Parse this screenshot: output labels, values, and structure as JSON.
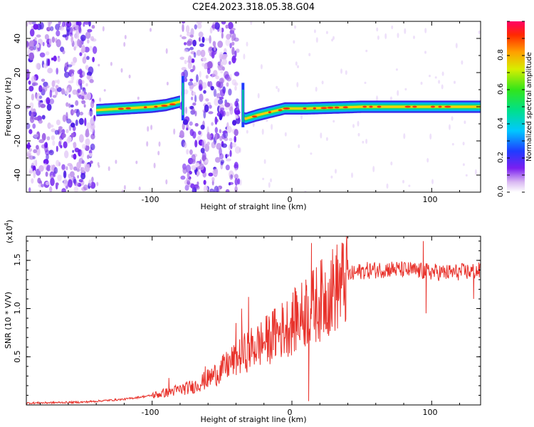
{
  "title": "C2E4.2023.318.05.38.G04",
  "colors": {
    "line": "#e8322b",
    "axis": "#000000"
  },
  "chart_data": [
    {
      "type": "heatmap",
      "title": "C2E4.2023.318.05.38.G04",
      "xlabel": "Height of straight line (km)",
      "ylabel": "Frequency (Hz)",
      "xlim": [
        -190,
        135
      ],
      "ylim": [
        -50,
        50
      ],
      "x_ticks": [
        "-100",
        "0",
        "100"
      ],
      "y_ticks": [
        "-40",
        "-20",
        "0",
        "20",
        "40"
      ],
      "colorbar": {
        "label": "Normalized spectral amplitude",
        "range": [
          0,
          1
        ],
        "ticks": [
          "0.0",
          "0.2",
          "0.4",
          "0.6",
          "0.8"
        ],
        "colormap": "rainbow"
      },
      "noise_regions": [
        [
          -190,
          -141
        ],
        [
          -79,
          -38
        ]
      ],
      "signal_track": [
        {
          "x": -140,
          "y": -2
        },
        {
          "x": -120,
          "y": -1
        },
        {
          "x": -100,
          "y": 0
        },
        {
          "x": -90,
          "y": 1
        },
        {
          "x": -80,
          "y": 3
        },
        {
          "x": -33,
          "y": -7
        },
        {
          "x": -25,
          "y": -5
        },
        {
          "x": -15,
          "y": -3
        },
        {
          "x": -5,
          "y": -1
        },
        {
          "x": 10,
          "y": -1
        },
        {
          "x": 50,
          "y": 0
        },
        {
          "x": 100,
          "y": 0
        },
        {
          "x": 135,
          "y": 0
        }
      ]
    },
    {
      "type": "line",
      "xlabel": "Height of straight line (km)",
      "ylabel": "SNR (10 * V/V)",
      "y_multiplier": "(x10",
      "y_multiplier_exp": "4",
      "xlim": [
        -190,
        135
      ],
      "ylim": [
        0,
        1.75
      ],
      "x_ticks": [
        "-100",
        "0",
        "100"
      ],
      "y_ticks": [
        "0.5",
        "1.0",
        "1.5"
      ],
      "series": [
        {
          "trend": [
            {
              "x": -190,
              "y": 0.02
            },
            {
              "x": -150,
              "y": 0.03
            },
            {
              "x": -120,
              "y": 0.06
            },
            {
              "x": -100,
              "y": 0.1
            },
            {
              "x": -85,
              "y": 0.15
            },
            {
              "x": -70,
              "y": 0.2
            },
            {
              "x": -60,
              "y": 0.28
            },
            {
              "x": -50,
              "y": 0.38
            },
            {
              "x": -40,
              "y": 0.5
            },
            {
              "x": -30,
              "y": 0.6
            },
            {
              "x": -20,
              "y": 0.68
            },
            {
              "x": -10,
              "y": 0.78
            },
            {
              "x": 0,
              "y": 0.88
            },
            {
              "x": 10,
              "y": 1.0
            },
            {
              "x": 20,
              "y": 1.12
            },
            {
              "x": 30,
              "y": 1.25
            },
            {
              "x": 40,
              "y": 1.35
            },
            {
              "x": 50,
              "y": 1.4
            },
            {
              "x": 70,
              "y": 1.42
            },
            {
              "x": 90,
              "y": 1.4
            },
            {
              "x": 110,
              "y": 1.38
            },
            {
              "x": 135,
              "y": 1.4
            }
          ],
          "spikes": [
            {
              "x": -88,
              "y": 0.28
            },
            {
              "x": -62,
              "y": 0.4
            },
            {
              "x": -40,
              "y": 0.85
            },
            {
              "x": -36,
              "y": 1.0
            },
            {
              "x": -31,
              "y": 1.12
            },
            {
              "x": -12,
              "y": 1.0
            },
            {
              "x": 3,
              "y": 1.18
            },
            {
              "x": 10,
              "y": 1.3
            },
            {
              "x": 14,
              "y": 1.68
            },
            {
              "x": 12,
              "y": 0.04
            },
            {
              "x": 94,
              "y": 1.7
            },
            {
              "x": 96,
              "y": 0.95
            },
            {
              "x": 130,
              "y": 1.1
            }
          ]
        }
      ]
    }
  ]
}
